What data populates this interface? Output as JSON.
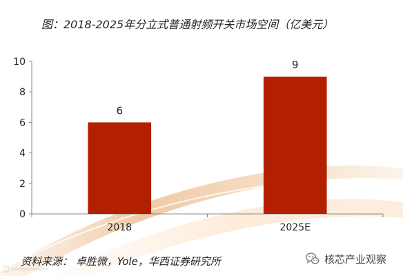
{
  "header": {
    "title": "图：2018-2025年分立式普通射频开关市场空间（亿美元）"
  },
  "footer": {
    "source": "资料来源： 卓胜微，Yole，华西证券研究所",
    "watermark_text": "核芯产业观察",
    "watermark_icon": "wechat-icon"
  },
  "colors": {
    "bar": "#B22000",
    "axis": "#888888",
    "swoosh_dark": "#E9B98A",
    "swoosh_light": "#F6E2CC",
    "swoosh_highlight": "#FFF5EA"
  },
  "chart_data": {
    "type": "bar",
    "title": "图：2018-2025年分立式普通射频开关市场空间（亿美元）",
    "categories": [
      "2018",
      "2025E"
    ],
    "values": [
      6,
      9
    ],
    "data_labels": [
      "6",
      "9"
    ],
    "yticks": [
      "0",
      "2",
      "4",
      "6",
      "8",
      "10"
    ],
    "ylim": [
      0,
      10
    ],
    "xlabel": "",
    "ylabel": "",
    "grid": false,
    "legend": "none"
  }
}
